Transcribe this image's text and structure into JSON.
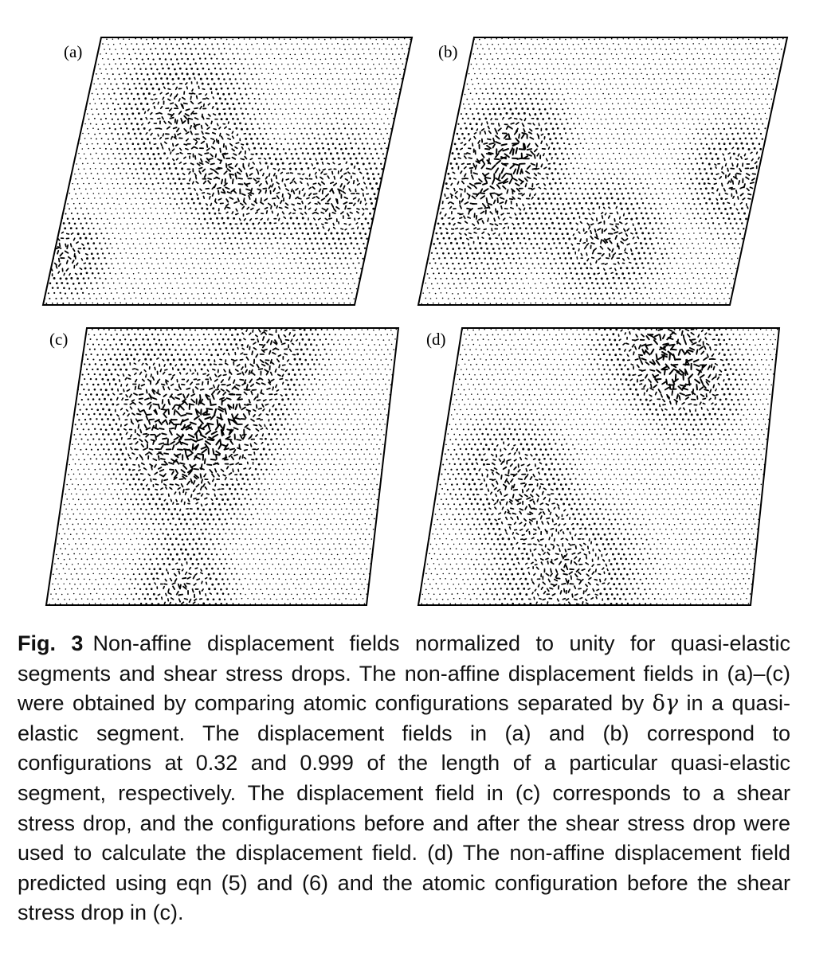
{
  "figure": {
    "panels": [
      {
        "label": "(a)"
      },
      {
        "label": "(b)"
      },
      {
        "label": "(c)"
      },
      {
        "label": "(d)"
      }
    ]
  },
  "caption": {
    "fig_label": "Fig. 3",
    "text_part1": "Non-affine displacement fields normalized to unity for quasi-elastic segments and shear stress drops. The non-affine displacement fields in (a)–(c) were obtained by comparing atomic configurations sepa­rated by ",
    "symbol_delta": "δ",
    "symbol_gamma": "γ",
    "text_part2": " in a quasi-elastic segment. The displacement fields in (a) and (b) correspond to configurations at 0.32 and 0.999 of the length of a particular quasi-elastic segment, respectively. The displacement field in (c) corresponds to a shear stress drop, and the configurations before and after the shear stress drop were used to calculate the displacement field. (d) The non-affine displacement field predicted using eqn (5) and (6) and the atomic configuration before the shear stress drop in (c)."
  }
}
